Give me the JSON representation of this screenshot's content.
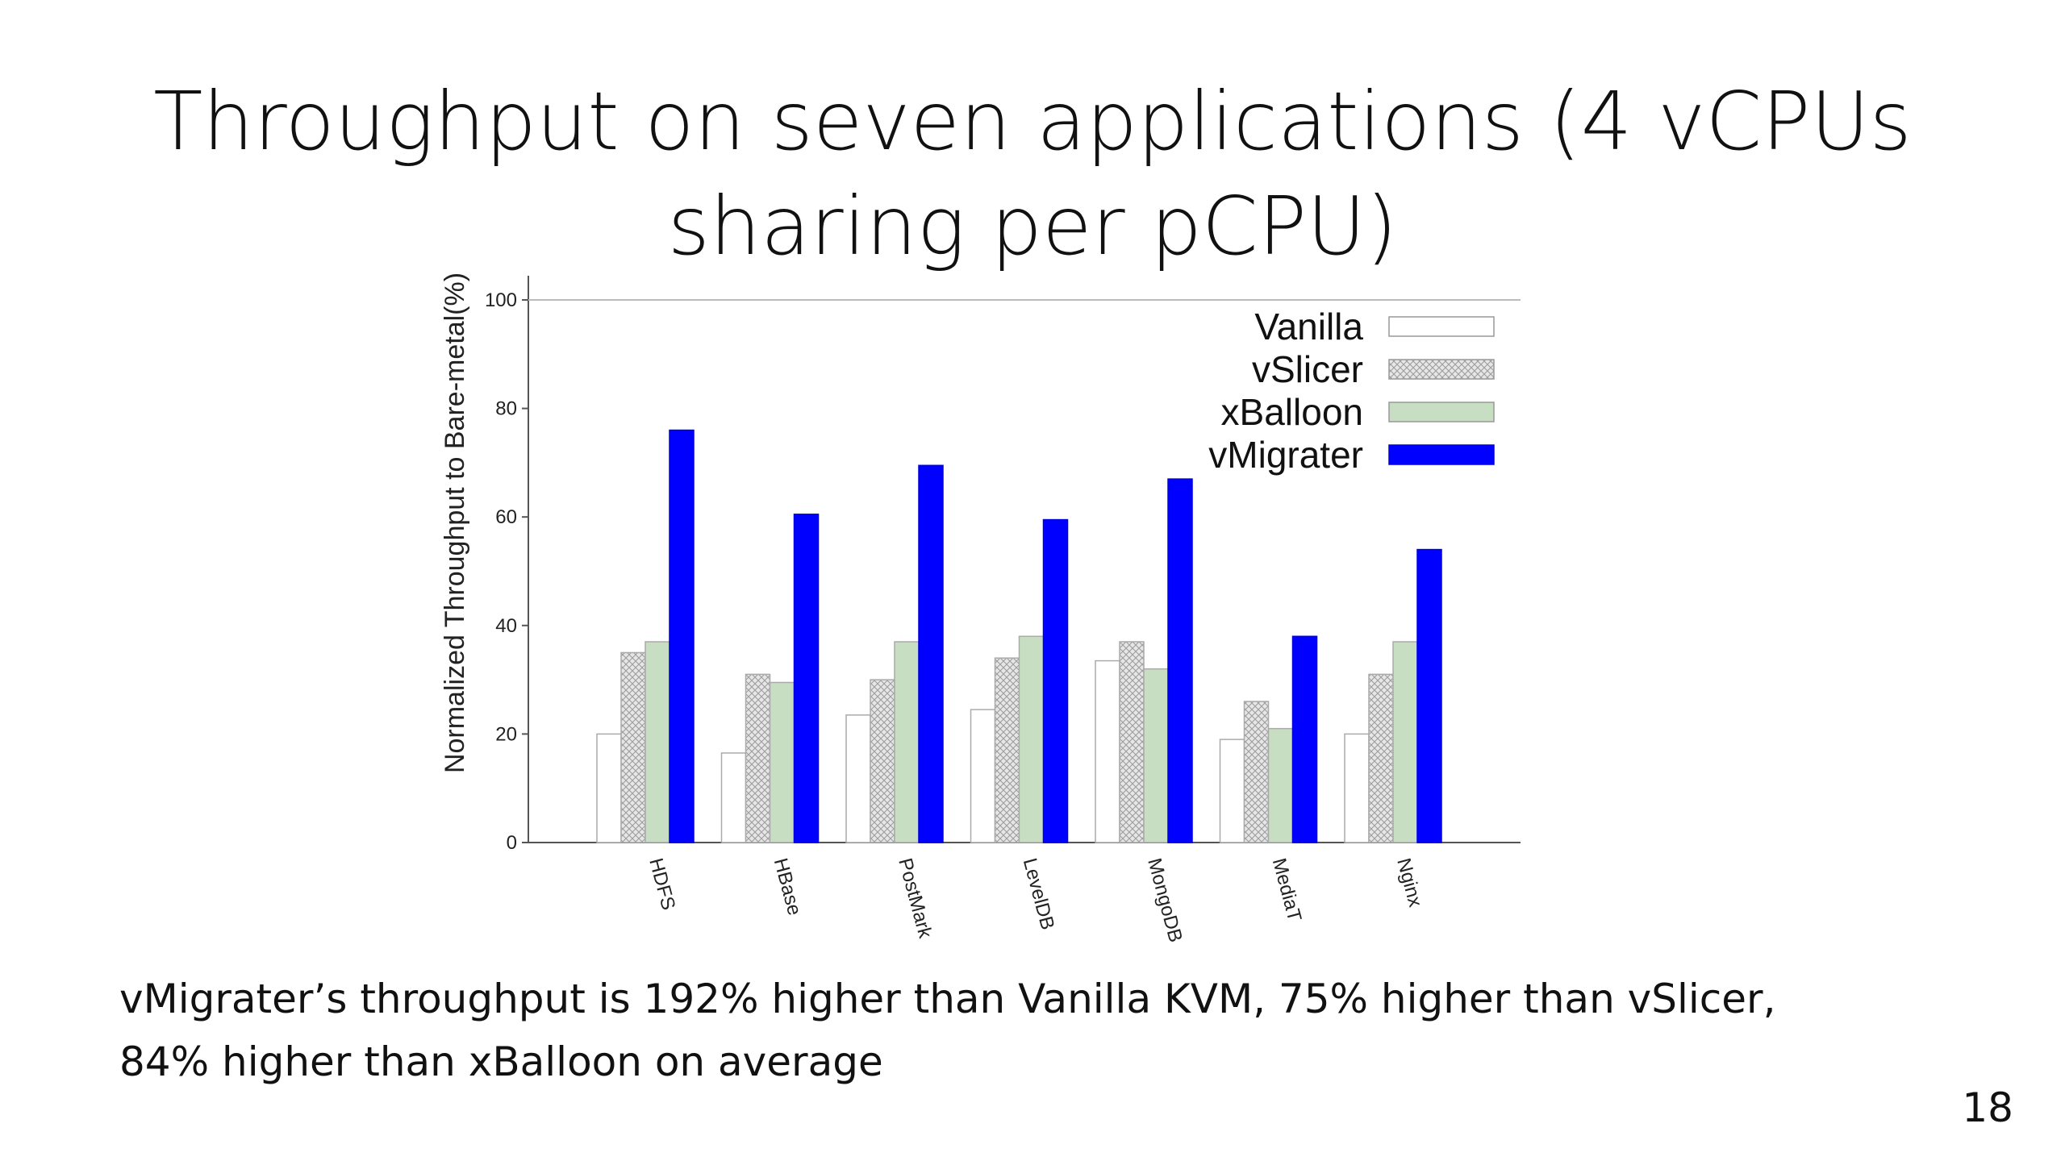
{
  "slide": {
    "title_line1": "Throughput on seven applications (4 vCPUs",
    "title_line2": "sharing per pCPU)",
    "caption_line1": "vMigrater’s throughput is 192% higher than Vanilla KVM, 75% higher than vSlicer,",
    "caption_line2": "84% higher than xBalloon on average",
    "page_number": "18"
  },
  "chart_data": {
    "type": "bar",
    "title": "",
    "xlabel": "",
    "ylabel": "Normalized Throughput to Bare-metal(%)",
    "ylim": [
      0,
      100
    ],
    "yticks": [
      "0",
      "20",
      "40",
      "60",
      "80",
      "100"
    ],
    "grid": false,
    "legend_position": "top-right",
    "categories": [
      "HDFS",
      "HBase",
      "PostMark",
      "LevelDB",
      "MongoDB",
      "MediaT",
      "Nginx"
    ],
    "series": [
      {
        "name": "Vanilla",
        "color": "#ffffff",
        "pattern": "none",
        "values": [
          20,
          16.5,
          23.5,
          24.5,
          33.5,
          19,
          20
        ]
      },
      {
        "name": "vSlicer",
        "color": "#dcdcdc",
        "pattern": "crosshatch",
        "values": [
          35,
          31,
          30,
          34,
          37,
          26,
          31
        ]
      },
      {
        "name": "xBalloon",
        "color": "#c8dec2",
        "pattern": "none",
        "values": [
          37,
          29.5,
          37,
          38,
          32,
          21,
          37
        ]
      },
      {
        "name": "vMigrater",
        "color": "#0000ff",
        "pattern": "none",
        "values": [
          76,
          60.5,
          69.5,
          59.5,
          67,
          38,
          54
        ]
      }
    ]
  }
}
